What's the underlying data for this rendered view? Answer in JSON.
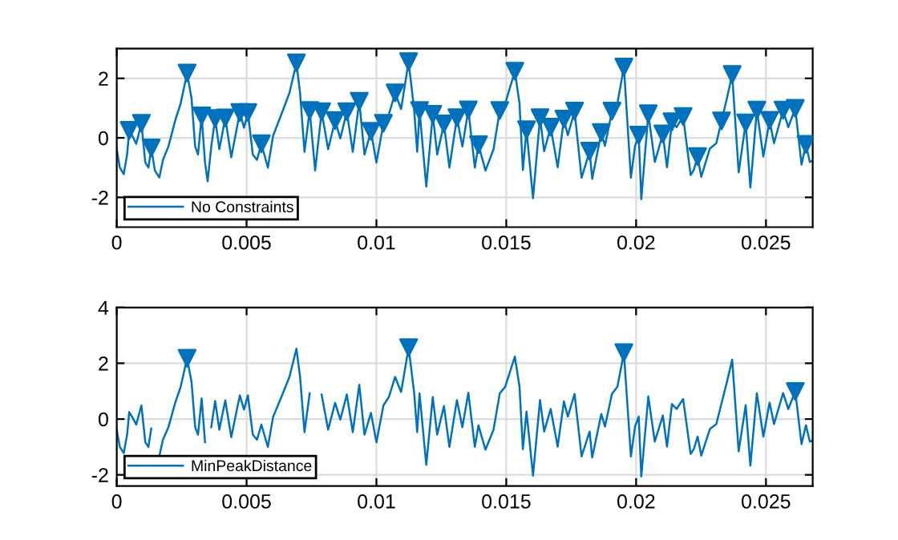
{
  "chart_data": [
    {
      "type": "line",
      "xlim": [
        0,
        0.0268
      ],
      "xticks": [
        {
          "value": 0,
          "label": "0"
        },
        0.005,
        0.01,
        0.015,
        0.02,
        0.025
      ],
      "ylim": [
        -3,
        3
      ],
      "yticks": [
        -2,
        0,
        2
      ],
      "grid": true,
      "legend": "bottom left",
      "series": [
        {
          "name": "No Constraints",
          "color": "#0072bd",
          "x": [
            0,
            0.00012,
            0.00027,
            0.0004,
            0.00048,
            0.0006,
            0.00075,
            0.00095,
            0.0011,
            0.00122,
            0.00133,
            0.00147,
            0.00164,
            0.00178,
            0.00199,
            0.00226,
            0.00246,
            0.00271,
            0.00288,
            0.00302,
            0.00313,
            0.00327,
            0.0034,
            0.0035,
            0.00364,
            0.00379,
            0.00395,
            0.00418,
            0.00441,
            0.00474,
            0.0049,
            0.00505,
            0.00524,
            0.0054,
            0.00557,
            0.00582,
            0.00602,
            0.00634,
            0.00665,
            0.00692,
            0.00706,
            0.00723,
            0.00743,
            0.00764,
            0.00789,
            0.00814,
            0.00841,
            0.00861,
            0.00886,
            0.00909,
            0.00934,
            0.00954,
            0.00979,
            0.01,
            0.01027,
            0.01048,
            0.01072,
            0.01095,
            0.01124,
            0.01145,
            0.01157,
            0.01166,
            0.01192,
            0.01217,
            0.01234,
            0.0126,
            0.01281,
            0.0131,
            0.01331,
            0.01354,
            0.01379,
            0.01393,
            0.0142,
            0.01451,
            0.01475,
            0.01496,
            0.01533,
            0.01551,
            0.01564,
            0.01578,
            0.01603,
            0.0163,
            0.01646,
            0.01671,
            0.01698,
            0.01722,
            0.01737,
            0.01763,
            0.0179,
            0.01821,
            0.01831,
            0.01866,
            0.0188,
            0.01907,
            0.01928,
            0.01953,
            0.0198,
            0.01996,
            0.0201,
            0.0202,
            0.02047,
            0.02072,
            0.02103,
            0.02119,
            0.02138,
            0.02156,
            0.02181,
            0.0221,
            0.02222,
            0.02237,
            0.02251,
            0.02284,
            0.02309,
            0.02329,
            0.0235,
            0.0237,
            0.02395,
            0.02422,
            0.0244,
            0.02465,
            0.0249,
            0.02514,
            0.02531,
            0.02566,
            0.02586,
            0.02613,
            0.02637,
            0.02654,
            0.02669,
            0.0268
          ],
          "values": [
            -0.38,
            -1.0,
            -1.22,
            -0.56,
            0.25,
            0.07,
            -0.2,
            0.49,
            -0.83,
            -1.0,
            -0.34,
            -1.1,
            -1.33,
            -0.74,
            -0.29,
            0.61,
            1.15,
            2.18,
            1.33,
            -0.29,
            -0.56,
            0.74,
            -0.83,
            -1.46,
            -0.29,
            0.65,
            -0.38,
            0.67,
            -0.65,
            0.85,
            0.34,
            0.85,
            -0.56,
            -0.74,
            -0.2,
            -1.0,
            0.07,
            0.79,
            1.51,
            2.52,
            1.51,
            -0.47,
            0.92,
            -1.1,
            0.88,
            -0.38,
            0.58,
            -0.02,
            0.88,
            -0.47,
            1.23,
            -0.56,
            0.22,
            -0.83,
            0.49,
            0.79,
            1.51,
            0.97,
            2.56,
            0.97,
            -0.47,
            0.92,
            -1.64,
            0.79,
            -0.56,
            0.47,
            -1.0,
            0.68,
            -0.29,
            0.94,
            -1.0,
            -0.23,
            -1.1,
            -0.38,
            0.92,
            1.16,
            2.24,
            1.16,
            -1.08,
            0.27,
            -2.03,
            0.68,
            -0.45,
            0.36,
            -0.99,
            0.63,
            0.09,
            0.9,
            -1.34,
            -0.45,
            -1.38,
            0.18,
            -0.27,
            0.9,
            1.16,
            2.38,
            -1.34,
            -0.27,
            0.09,
            -2.06,
            0.81,
            -0.81,
            0.13,
            -0.99,
            0.54,
            0.36,
            0.72,
            -1.25,
            -1.08,
            -0.63,
            -1.31,
            -0.36,
            -0.18,
            0.57,
            1.34,
            2.13,
            -1.16,
            0.5,
            -1.67,
            0.93,
            -0.63,
            0.59,
            -0.18,
            0.93,
            0.36,
            0.99,
            -0.9,
            -0.22,
            -0.81,
            -0.77
          ]
        },
        {
          "type": "scatter",
          "color": "#0072bd",
          "marker": "triangle",
          "x": [
            0.00048,
            0.00095,
            0.00133,
            0.00271,
            0.00327,
            0.00379,
            0.00418,
            0.00474,
            0.00505,
            0.00557,
            0.00692,
            0.00743,
            0.00789,
            0.00841,
            0.00886,
            0.00934,
            0.00979,
            0.01027,
            0.01072,
            0.01124,
            0.01166,
            0.01217,
            0.0126,
            0.0131,
            0.01354,
            0.01393,
            0.01475,
            0.01533,
            0.01578,
            0.0163,
            0.01671,
            0.01722,
            0.01763,
            0.01821,
            0.01866,
            0.01907,
            0.01953,
            0.0201,
            0.02047,
            0.02103,
            0.02138,
            0.02181,
            0.02237,
            0.02329,
            0.0237,
            0.02422,
            0.02465,
            0.02514,
            0.02566,
            0.02613,
            0.02654
          ],
          "values": [
            0.25,
            0.49,
            -0.34,
            2.18,
            0.74,
            0.65,
            0.67,
            0.85,
            0.85,
            -0.2,
            2.52,
            0.92,
            0.88,
            0.58,
            0.88,
            1.23,
            0.22,
            0.49,
            1.51,
            2.56,
            0.92,
            0.79,
            0.47,
            0.68,
            0.94,
            -0.23,
            0.92,
            2.24,
            0.27,
            0.68,
            0.36,
            0.63,
            0.9,
            -0.45,
            0.18,
            0.9,
            2.38,
            0.09,
            0.81,
            0.13,
            0.54,
            0.72,
            -0.63,
            0.57,
            2.13,
            0.5,
            0.93,
            0.59,
            0.93,
            0.99,
            -0.22
          ]
        }
      ]
    },
    {
      "type": "line",
      "xlim": [
        0,
        0.0268
      ],
      "xticks": [
        {
          "value": 0,
          "label": "0"
        },
        0.005,
        0.01,
        0.015,
        0.02,
        0.025
      ],
      "ylim": [
        -2.4,
        4
      ],
      "yticks": [
        -2,
        0,
        2,
        4
      ],
      "grid": true,
      "legend": "bottom left",
      "series": [
        {
          "name": "MinPeakDistance",
          "color": "#0072bd",
          "x": [
            0,
            0.00012,
            0.00027,
            0.0004,
            0.00048,
            0.0006,
            0.00075,
            0.00095,
            0.0011,
            0.00122,
            0.00133,
            0.00147,
            0.00164,
            0.00178,
            0.00199,
            0.00226,
            0.00246,
            0.00271,
            0.00288,
            0.00302,
            0.00313,
            0.00327,
            0.0034,
            0.0035,
            0.00364,
            0.00379,
            0.00395,
            0.00418,
            0.00441,
            0.00474,
            0.0049,
            0.00505,
            0.00524,
            0.0054,
            0.00557,
            0.00582,
            0.00602,
            0.00634,
            0.00665,
            0.00692,
            0.00706,
            0.00723,
            0.00743,
            0.00764,
            0.00789,
            0.00814,
            0.00841,
            0.00861,
            0.00886,
            0.00909,
            0.00934,
            0.00954,
            0.00979,
            0.01,
            0.01027,
            0.01048,
            0.01072,
            0.01095,
            0.01124,
            0.01145,
            0.01157,
            0.01166,
            0.01192,
            0.01217,
            0.01234,
            0.0126,
            0.01281,
            0.0131,
            0.01331,
            0.01354,
            0.01379,
            0.01393,
            0.0142,
            0.01451,
            0.01475,
            0.01496,
            0.01533,
            0.01551,
            0.01564,
            0.01578,
            0.01603,
            0.0163,
            0.01646,
            0.01671,
            0.01698,
            0.01722,
            0.01737,
            0.01763,
            0.0179,
            0.01821,
            0.01831,
            0.01866,
            0.0188,
            0.01907,
            0.01928,
            0.01953,
            0.0198,
            0.01996,
            0.0201,
            0.0202,
            0.02047,
            0.02072,
            0.02103,
            0.02119,
            0.02138,
            0.02156,
            0.02181,
            0.0221,
            0.02222,
            0.02237,
            0.02251,
            0.02284,
            0.02309,
            0.02329,
            0.0235,
            0.0237,
            0.02395,
            0.02422,
            0.0244,
            0.02465,
            0.0249,
            0.02514,
            0.02531,
            0.02566,
            0.02586,
            0.02613,
            0.02637,
            0.02654,
            0.02669,
            0.0268
          ],
          "values": [
            -0.38,
            -1.0,
            -1.22,
            -0.56,
            0.25,
            0.07,
            -0.2,
            0.49,
            -0.83,
            -1.0,
            -0.34,
            null,
            -1.33,
            -0.74,
            -0.29,
            0.61,
            1.15,
            2.18,
            1.33,
            -0.29,
            -0.56,
            0.74,
            -0.83,
            null,
            -0.29,
            0.65,
            -0.38,
            0.67,
            -0.65,
            0.85,
            0.34,
            0.85,
            -0.56,
            -0.74,
            -0.2,
            -1.0,
            0.07,
            0.79,
            1.51,
            2.52,
            1.51,
            -0.47,
            0.92,
            null,
            0.88,
            -0.38,
            0.58,
            -0.02,
            0.88,
            -0.47,
            1.23,
            -0.56,
            0.22,
            -0.83,
            0.49,
            0.79,
            1.51,
            0.97,
            2.56,
            0.97,
            -0.47,
            0.92,
            -1.64,
            0.79,
            -0.56,
            0.47,
            -1.0,
            0.68,
            -0.29,
            0.94,
            -1.0,
            -0.23,
            -1.1,
            -0.38,
            0.92,
            1.16,
            2.24,
            1.16,
            -1.08,
            0.27,
            -2.03,
            0.68,
            -0.45,
            0.36,
            -0.99,
            0.63,
            0.09,
            0.9,
            -1.34,
            -0.45,
            -1.38,
            0.18,
            -0.27,
            0.9,
            1.16,
            2.38,
            -1.34,
            -0.27,
            0.09,
            -2.06,
            0.81,
            -0.81,
            0.13,
            -0.99,
            0.54,
            0.36,
            0.72,
            -1.25,
            -1.08,
            -0.63,
            -1.31,
            -0.36,
            -0.18,
            0.57,
            1.34,
            2.13,
            -1.16,
            0.5,
            -1.67,
            0.93,
            -0.63,
            0.59,
            -0.18,
            0.93,
            0.36,
            0.99,
            -0.9,
            -0.22,
            -0.81,
            -0.77
          ]
        },
        {
          "type": "scatter",
          "color": "#0072bd",
          "marker": "triangle",
          "x": [
            0.00271,
            0.01124,
            0.01953,
            0.02613
          ],
          "values": [
            2.18,
            2.56,
            2.38,
            0.99
          ]
        }
      ]
    }
  ]
}
